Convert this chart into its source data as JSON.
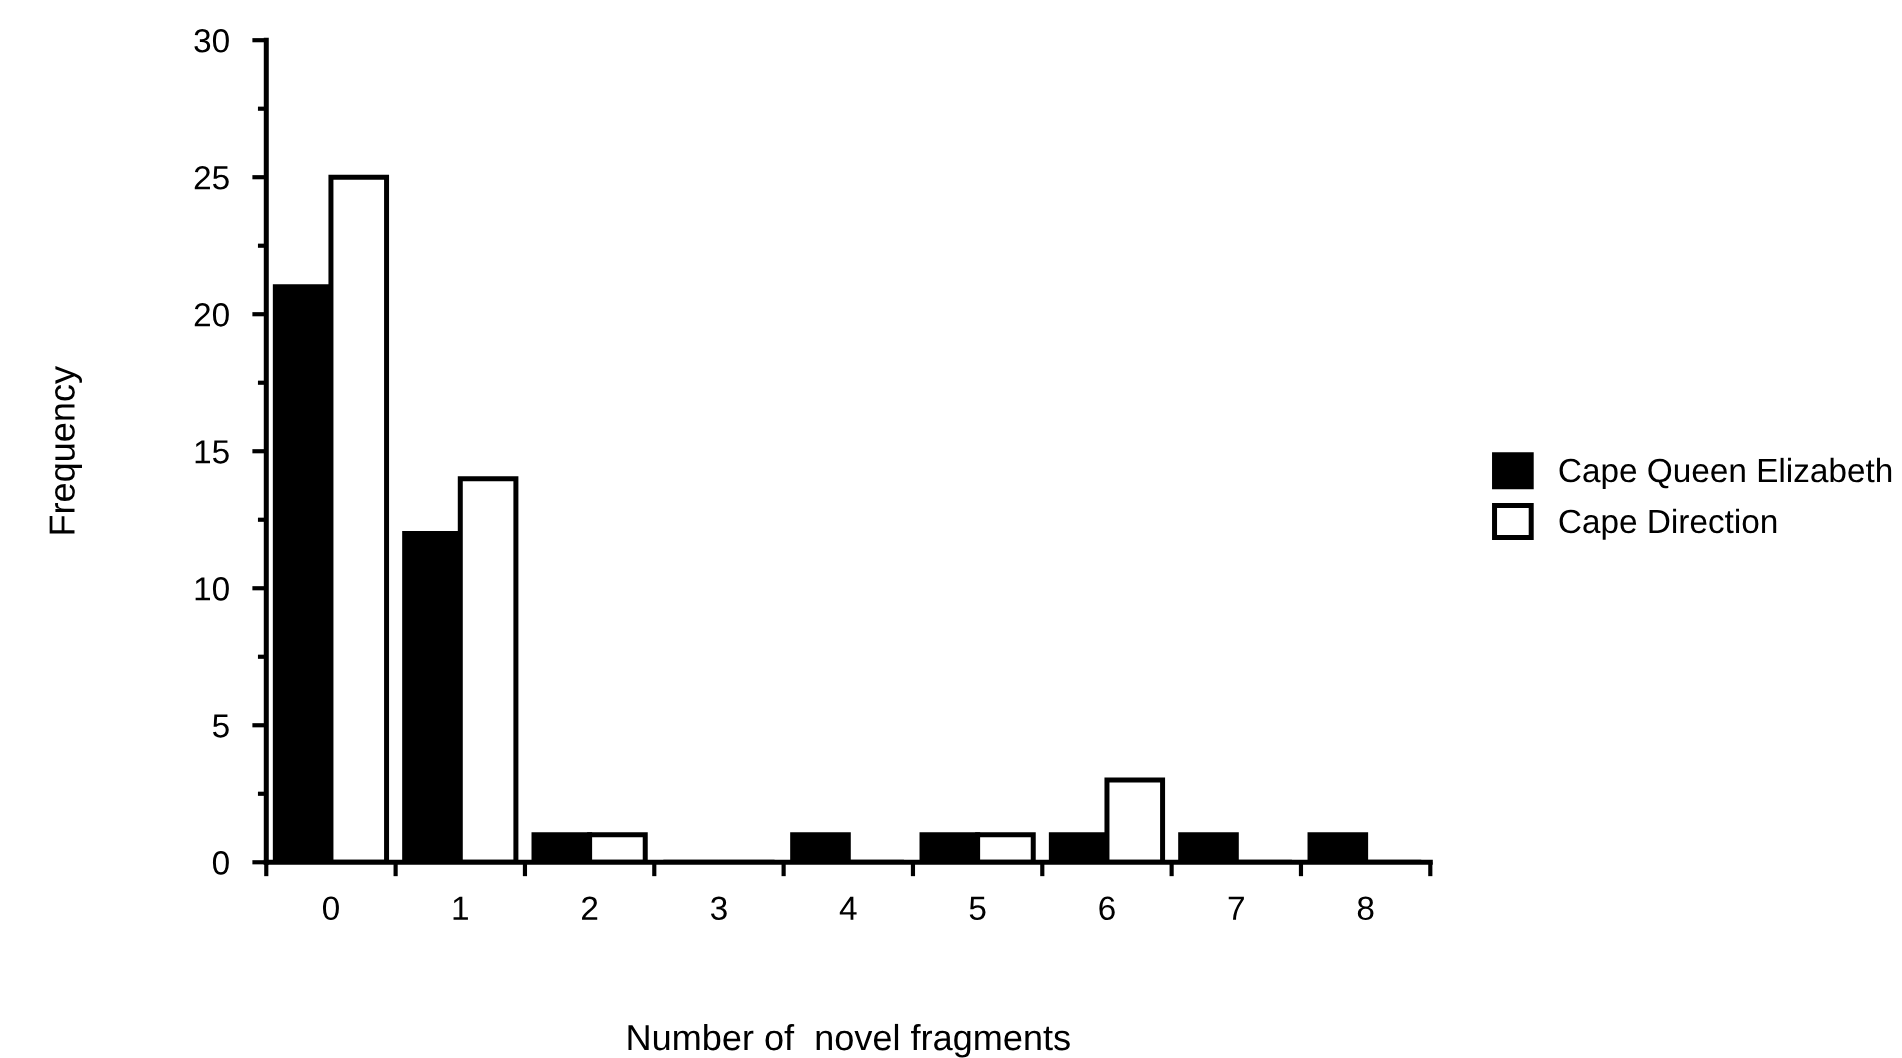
{
  "chart_data": {
    "type": "bar",
    "xlabel": "Number of  novel fragments",
    "ylabel": "Frequency",
    "categories": [
      "0",
      "1",
      "2",
      "3",
      "4",
      "5",
      "6",
      "7",
      "8"
    ],
    "series": [
      {
        "name": "Cape Queen Elizabeth",
        "color": "#000000",
        "values": [
          21,
          12,
          1,
          0,
          1,
          1,
          1,
          1,
          1
        ]
      },
      {
        "name": "Cape Direction",
        "color": "#ffffff",
        "values": [
          25,
          14,
          1,
          0,
          0,
          1,
          3,
          0,
          0
        ]
      }
    ],
    "ylim": [
      0,
      30
    ],
    "yticks": [
      0,
      {
        "value": 2.5,
        "label": null
      },
      5,
      {
        "value": 7.5,
        "label": null
      },
      10,
      {
        "value": 12.5,
        "label": null
      },
      15,
      {
        "value": 17.5,
        "label": null
      },
      20,
      {
        "value": 22.5,
        "label": null
      },
      25,
      {
        "value": 27.5,
        "label": null
      },
      30
    ],
    "grid": false,
    "legend": "right"
  }
}
